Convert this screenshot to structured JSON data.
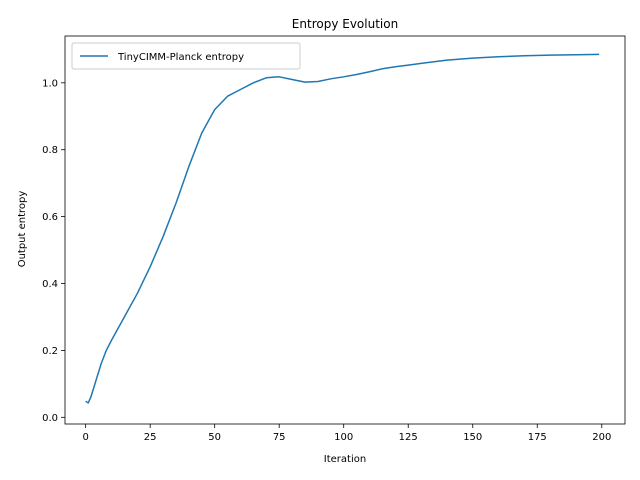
{
  "chart_data": {
    "type": "line",
    "title": "Entropy Evolution",
    "xlabel": "Iteration",
    "ylabel": "Output entropy",
    "xlim": [
      -8,
      209
    ],
    "ylim": [
      -0.02,
      1.14
    ],
    "xticks": [
      0,
      25,
      50,
      75,
      100,
      125,
      150,
      175,
      200
    ],
    "xtick_labels": [
      "0",
      "25",
      "50",
      "75",
      "100",
      "125",
      "150",
      "175",
      "200"
    ],
    "yticks": [
      0.0,
      0.2,
      0.4,
      0.6,
      0.8,
      1.0
    ],
    "ytick_labels": [
      "0.0",
      "0.2",
      "0.4",
      "0.6",
      "0.8",
      "1.0"
    ],
    "grid": false,
    "legend_position": "upper-left",
    "series": [
      {
        "name": "TinyCIMM-Planck entropy",
        "color": "#1f77b4",
        "x": [
          0,
          1,
          2,
          4,
          6,
          8,
          10,
          15,
          20,
          25,
          30,
          35,
          40,
          45,
          50,
          55,
          60,
          65,
          70,
          75,
          80,
          85,
          90,
          95,
          100,
          105,
          110,
          115,
          120,
          125,
          130,
          140,
          150,
          160,
          170,
          180,
          190,
          199
        ],
        "y": [
          0.048,
          0.043,
          0.06,
          0.11,
          0.16,
          0.2,
          0.23,
          0.3,
          0.37,
          0.45,
          0.54,
          0.64,
          0.75,
          0.85,
          0.92,
          0.96,
          0.98,
          1.0,
          1.015,
          1.018,
          1.01,
          1.002,
          1.004,
          1.012,
          1.018,
          1.025,
          1.033,
          1.042,
          1.048,
          1.053,
          1.058,
          1.068,
          1.074,
          1.078,
          1.081,
          1.083,
          1.084,
          1.085
        ]
      }
    ]
  }
}
